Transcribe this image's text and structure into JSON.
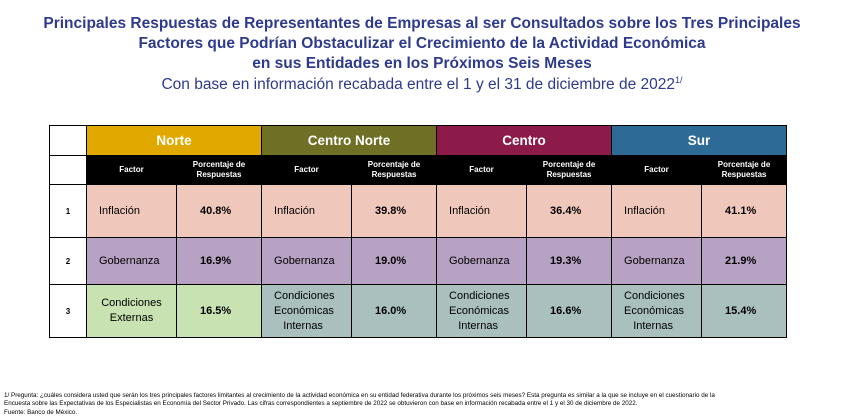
{
  "title": {
    "line1": "Principales Respuestas de Representantes de Empresas al ser Consultados sobre los Tres Principales",
    "line2": "Factores que Podrían Obstaculizar el Crecimiento de la Actividad Económica",
    "line3": "en sus Entidades en los Próximos Seis Meses",
    "subtitle": "Con base en información recabada entre el 1 y el 31 de diciembre de 2022",
    "subtitle_sup": "1/"
  },
  "colors": {
    "title": "#2e3a8c",
    "norte": "#e1a800",
    "centro_norte": "#6f6f25",
    "centro": "#8c1b49",
    "sur": "#2d6b96",
    "row_inflacion": "#f0c8bb",
    "row_gobernanza": "#b8a2c4",
    "row_externas": "#c8e2b2",
    "row_internas": "#a9c0bf"
  },
  "table": {
    "regions": [
      "Norte",
      "Centro Norte",
      "Centro",
      "Sur"
    ],
    "col_factor": "Factor",
    "col_pct_line1": "Porcentaje de",
    "col_pct_line2": "Respuestas",
    "rows": [
      {
        "num": "1",
        "cells": [
          {
            "factor": "Inflación",
            "pct": "40.8%"
          },
          {
            "factor": "Inflación",
            "pct": "39.8%"
          },
          {
            "factor": "Inflación",
            "pct": "36.4%"
          },
          {
            "factor": "Inflación",
            "pct": "41.1%"
          }
        ]
      },
      {
        "num": "2",
        "cells": [
          {
            "factor": "Gobernanza",
            "pct": "16.9%"
          },
          {
            "factor": "Gobernanza",
            "pct": "19.0%"
          },
          {
            "factor": "Gobernanza",
            "pct": "19.3%"
          },
          {
            "factor": "Gobernanza",
            "pct": "21.9%"
          }
        ]
      },
      {
        "num": "3",
        "cells": [
          {
            "factor_l1": "Condiciones",
            "factor_l2": "Externas",
            "pct": "16.5%"
          },
          {
            "factor_l1": "Condiciones",
            "factor_l2": "Económicas",
            "factor_l3": "Internas",
            "pct": "16.0%"
          },
          {
            "factor_l1": "Condiciones",
            "factor_l2": "Económicas",
            "factor_l3": "Internas",
            "pct": "16.6%"
          },
          {
            "factor_l1": "Condiciones",
            "factor_l2": "Económicas",
            "factor_l3": "Internas",
            "pct": "15.4%"
          }
        ]
      }
    ]
  },
  "footnote": {
    "line1": "1/ Pregunta: ¿cuáles considera usted que serán los tres principales factores limitantes al crecimiento de la actividad económica en su entidad federativa durante los próximos seis meses? Esta pregunta es similar a la que se incluye en el cuestionario de la",
    "line2": "Encuesta sobre las Expectativas de los Especialistas en Economía del Sector Privado. Las cifras correspondientes a septiembre de 2022 se obtuvieron con base en información recabada entre el 1 y el 30 de diciembre de 2022.",
    "line3": "Fuente: Banco de México."
  }
}
